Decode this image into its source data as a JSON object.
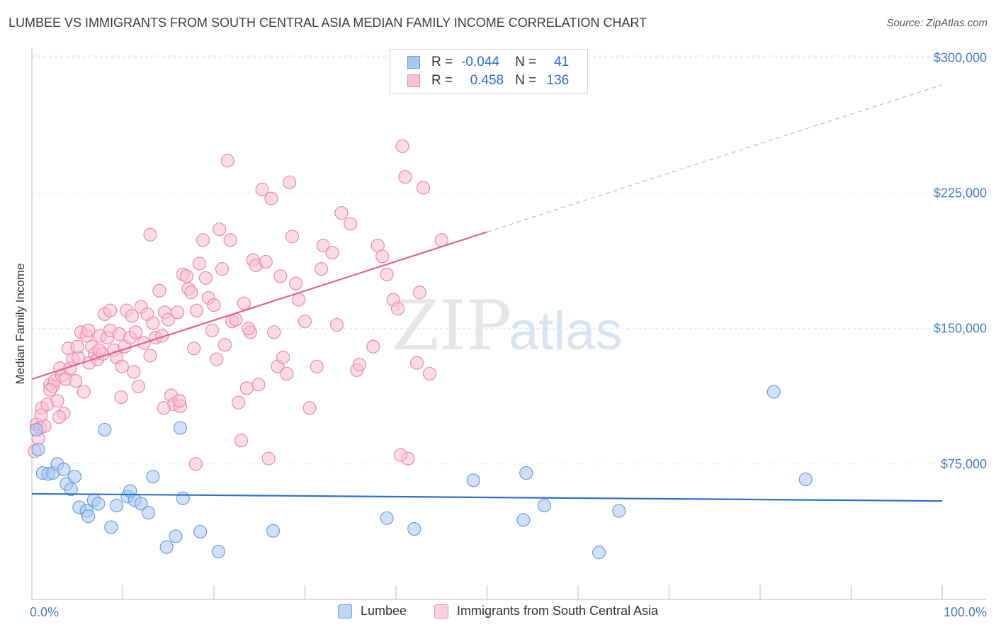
{
  "title": "LUMBEE VS IMMIGRANTS FROM SOUTH CENTRAL ASIA MEDIAN FAMILY INCOME CORRELATION CHART",
  "source": "Source: ZipAtlas.com",
  "watermark": {
    "zip": "ZIP",
    "atlas": "atlas"
  },
  "legend": {
    "rows": [
      {
        "r_label": "R =",
        "r_value": "-0.044",
        "n_label": "N =",
        "n_value": "41",
        "color": "#a9c8f0",
        "border": "#6b9ee0"
      },
      {
        "r_label": "R =",
        "r_value": "0.458",
        "n_label": "N =",
        "n_value": "136",
        "color": "#f8c0d2",
        "border": "#e88aa9"
      }
    ]
  },
  "bottom_legend": [
    {
      "label": "Lumbee",
      "color": "#bcd6f5",
      "border": "#6b9ee0"
    },
    {
      "label": "Immigrants from South Central Asia",
      "color": "#fbd0de",
      "border": "#e88aa9"
    }
  ],
  "chart_data": {
    "type": "scatter",
    "title": "LUMBEE VS IMMIGRANTS FROM SOUTH CENTRAL ASIA MEDIAN FAMILY INCOME CORRELATION CHART",
    "xlabel": "",
    "ylabel": "Median Family Income",
    "xlim": [
      0,
      100
    ],
    "ylim": [
      0,
      310000
    ],
    "x_tick_labels": [
      "0.0%",
      "100.0%"
    ],
    "y_ticks": [
      75000,
      150000,
      225000,
      300000
    ],
    "y_tick_labels": [
      "$75,000",
      "$150,000",
      "$225,000",
      "$300,000"
    ],
    "grid": true,
    "legend_position": "top-center",
    "series": [
      {
        "name": "Lumbee",
        "color": "#6b9ee0",
        "fill": "#a9c8f0",
        "trend": {
          "x": [
            0,
            100
          ],
          "y": [
            58500,
            54500
          ],
          "solid_until": 100,
          "color": "#2a6fd1"
        },
        "points": [
          [
            0.5,
            94000
          ],
          [
            0.7,
            83000
          ],
          [
            1.2,
            70000
          ],
          [
            1.8,
            69500
          ],
          [
            2.3,
            70000
          ],
          [
            2.8,
            75000
          ],
          [
            3.5,
            72000
          ],
          [
            3.8,
            64000
          ],
          [
            4.3,
            61000
          ],
          [
            4.7,
            68000
          ],
          [
            5.2,
            51000
          ],
          [
            6.0,
            49000
          ],
          [
            6.2,
            46000
          ],
          [
            6.8,
            55000
          ],
          [
            7.3,
            53000
          ],
          [
            8.0,
            94000
          ],
          [
            8.7,
            40000
          ],
          [
            9.3,
            52000
          ],
          [
            10.5,
            57000
          ],
          [
            10.8,
            60000
          ],
          [
            11.3,
            55000
          ],
          [
            12.0,
            53000
          ],
          [
            12.8,
            48000
          ],
          [
            13.3,
            68000
          ],
          [
            14.8,
            29000
          ],
          [
            15.8,
            35000
          ],
          [
            16.3,
            95000
          ],
          [
            16.6,
            56000
          ],
          [
            18.5,
            37500
          ],
          [
            20.5,
            26500
          ],
          [
            26.5,
            38000
          ],
          [
            39.0,
            45000
          ],
          [
            42.0,
            39000
          ],
          [
            48.5,
            66000
          ],
          [
            54.0,
            44000
          ],
          [
            54.3,
            70000
          ],
          [
            56.3,
            52000
          ],
          [
            62.3,
            26000
          ],
          [
            64.5,
            49000
          ],
          [
            81.5,
            115000
          ],
          [
            85.0,
            66500
          ]
        ]
      },
      {
        "name": "Immigrants from South Central Asia",
        "color": "#e88aa9",
        "fill": "#f8c0d2",
        "trend": {
          "x": [
            0,
            100
          ],
          "y": [
            122000,
            285000
          ],
          "solid_until": 50,
          "color": "#e2648f"
        },
        "points": [
          [
            0.3,
            82000
          ],
          [
            0.5,
            97000
          ],
          [
            0.7,
            89000
          ],
          [
            0.9,
            95000
          ],
          [
            1.1,
            106000
          ],
          [
            1.4,
            96000
          ],
          [
            1.7,
            108000
          ],
          [
            2.0,
            119000
          ],
          [
            2.3,
            118000
          ],
          [
            2.5,
            121000
          ],
          [
            2.8,
            110000
          ],
          [
            3.1,
            128000
          ],
          [
            3.3,
            124000
          ],
          [
            3.5,
            103000
          ],
          [
            3.7,
            122000
          ],
          [
            4.0,
            139000
          ],
          [
            4.2,
            128000
          ],
          [
            4.5,
            133000
          ],
          [
            4.8,
            121000
          ],
          [
            5.1,
            134000
          ],
          [
            5.4,
            148000
          ],
          [
            5.7,
            115000
          ],
          [
            6.0,
            146000
          ],
          [
            6.3,
            131000
          ],
          [
            6.6,
            140000
          ],
          [
            6.9,
            136000
          ],
          [
            7.2,
            133000
          ],
          [
            7.5,
            146000
          ],
          [
            7.8,
            136000
          ],
          [
            8.0,
            158000
          ],
          [
            8.3,
            145000
          ],
          [
            8.6,
            149000
          ],
          [
            9.0,
            138000
          ],
          [
            9.3,
            134000
          ],
          [
            9.6,
            147000
          ],
          [
            9.9,
            129000
          ],
          [
            10.2,
            140000
          ],
          [
            10.4,
            160000
          ],
          [
            10.8,
            145000
          ],
          [
            11.0,
            157000
          ],
          [
            11.4,
            148000
          ],
          [
            11.7,
            118000
          ],
          [
            12.0,
            162000
          ],
          [
            12.3,
            142000
          ],
          [
            12.7,
            158000
          ],
          [
            13.0,
            135000
          ],
          [
            13.3,
            153000
          ],
          [
            13.6,
            145000
          ],
          [
            14.0,
            171000
          ],
          [
            14.3,
            146000
          ],
          [
            14.6,
            159000
          ],
          [
            15.0,
            155000
          ],
          [
            15.3,
            113000
          ],
          [
            15.6,
            108000
          ],
          [
            16.0,
            159000
          ],
          [
            16.3,
            107000
          ],
          [
            16.6,
            180000
          ],
          [
            17.0,
            179000
          ],
          [
            17.2,
            172000
          ],
          [
            17.5,
            170000
          ],
          [
            17.8,
            139000
          ],
          [
            18.1,
            160000
          ],
          [
            18.4,
            186000
          ],
          [
            18.8,
            199000
          ],
          [
            19.1,
            178000
          ],
          [
            19.4,
            167000
          ],
          [
            19.8,
            149000
          ],
          [
            20.0,
            163000
          ],
          [
            20.3,
            133000
          ],
          [
            20.6,
            205000
          ],
          [
            20.9,
            183000
          ],
          [
            21.2,
            141000
          ],
          [
            21.5,
            243000
          ],
          [
            21.8,
            199000
          ],
          [
            22.0,
            154000
          ],
          [
            22.4,
            155000
          ],
          [
            22.7,
            109000
          ],
          [
            23.0,
            88000
          ],
          [
            23.3,
            164000
          ],
          [
            23.6,
            117000
          ],
          [
            24.0,
            148000
          ],
          [
            24.3,
            188000
          ],
          [
            24.6,
            185000
          ],
          [
            24.9,
            119000
          ],
          [
            25.3,
            227000
          ],
          [
            25.7,
            187000
          ],
          [
            26.3,
            222000
          ],
          [
            26.6,
            148000
          ],
          [
            27.0,
            129000
          ],
          [
            27.3,
            179000
          ],
          [
            27.6,
            134000
          ],
          [
            28.0,
            125000
          ],
          [
            28.3,
            231000
          ],
          [
            28.6,
            201000
          ],
          [
            29.0,
            175000
          ],
          [
            29.3,
            166000
          ],
          [
            30.0,
            154000
          ],
          [
            31.3,
            129000
          ],
          [
            32.0,
            196000
          ],
          [
            33.5,
            152000
          ],
          [
            34.0,
            214000
          ],
          [
            35.0,
            208000
          ],
          [
            35.7,
            127000
          ],
          [
            37.5,
            140000
          ],
          [
            38.0,
            196000
          ],
          [
            38.5,
            190000
          ],
          [
            39.0,
            180000
          ],
          [
            39.7,
            166000
          ],
          [
            40.2,
            161000
          ],
          [
            40.7,
            251000
          ],
          [
            41.0,
            234000
          ],
          [
            41.3,
            78000
          ],
          [
            42.3,
            131000
          ],
          [
            42.6,
            170000
          ],
          [
            43.0,
            228000
          ],
          [
            43.7,
            125000
          ],
          [
            45.0,
            199000
          ],
          [
            18.0,
            75000
          ],
          [
            16.2,
            110000
          ],
          [
            14.5,
            106000
          ],
          [
            13.0,
            202000
          ],
          [
            11.2,
            126000
          ],
          [
            9.8,
            112000
          ],
          [
            8.6,
            160000
          ],
          [
            7.4,
            138000
          ],
          [
            6.2,
            149000
          ],
          [
            5.0,
            140000
          ],
          [
            3.0,
            101000
          ],
          [
            2.0,
            116000
          ],
          [
            1.0,
            102000
          ],
          [
            26.0,
            78000
          ],
          [
            23.8,
            150000
          ],
          [
            30.5,
            106000
          ],
          [
            31.8,
            183000
          ],
          [
            33.0,
            192000
          ],
          [
            36.0,
            130000
          ],
          [
            40.5,
            80000
          ]
        ]
      }
    ]
  }
}
